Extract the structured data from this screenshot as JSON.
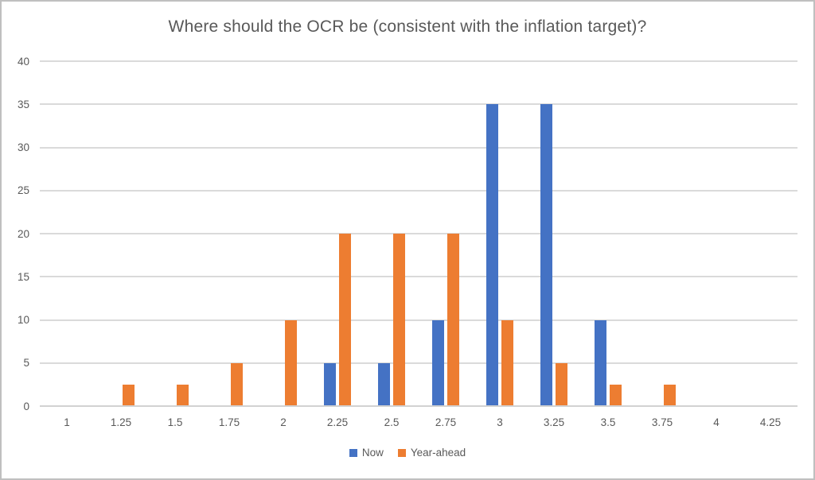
{
  "chart_data": {
    "type": "bar",
    "title": "Where should the OCR be (consistent with the inflation target)?",
    "categories": [
      "1",
      "1.25",
      "1.5",
      "1.75",
      "2",
      "2.25",
      "2.5",
      "2.75",
      "3",
      "3.25",
      "3.5",
      "3.75",
      "4",
      "4.25"
    ],
    "series": [
      {
        "name": "Now",
        "color": "#4472C4",
        "values": [
          0,
          0,
          0,
          0,
          0,
          5,
          5,
          10,
          35,
          35,
          10,
          0,
          0,
          0
        ]
      },
      {
        "name": "Year-ahead",
        "color": "#ED7D31",
        "values": [
          0,
          2.5,
          2.5,
          5,
          10,
          20,
          20,
          20,
          10,
          5,
          2.5,
          2.5,
          0,
          0
        ]
      }
    ],
    "xlabel": "",
    "ylabel": "",
    "ylim": [
      0,
      40
    ],
    "yticks": [
      0,
      5,
      10,
      15,
      20,
      25,
      30,
      35,
      40
    ],
    "grid": "horizontal",
    "legend_position": "bottom"
  },
  "colors": {
    "text": "#595959",
    "gridline": "#DADADA",
    "axis_line": "#D2D2D2",
    "border": "#BFBFBF",
    "background": "#FFFFFF"
  }
}
